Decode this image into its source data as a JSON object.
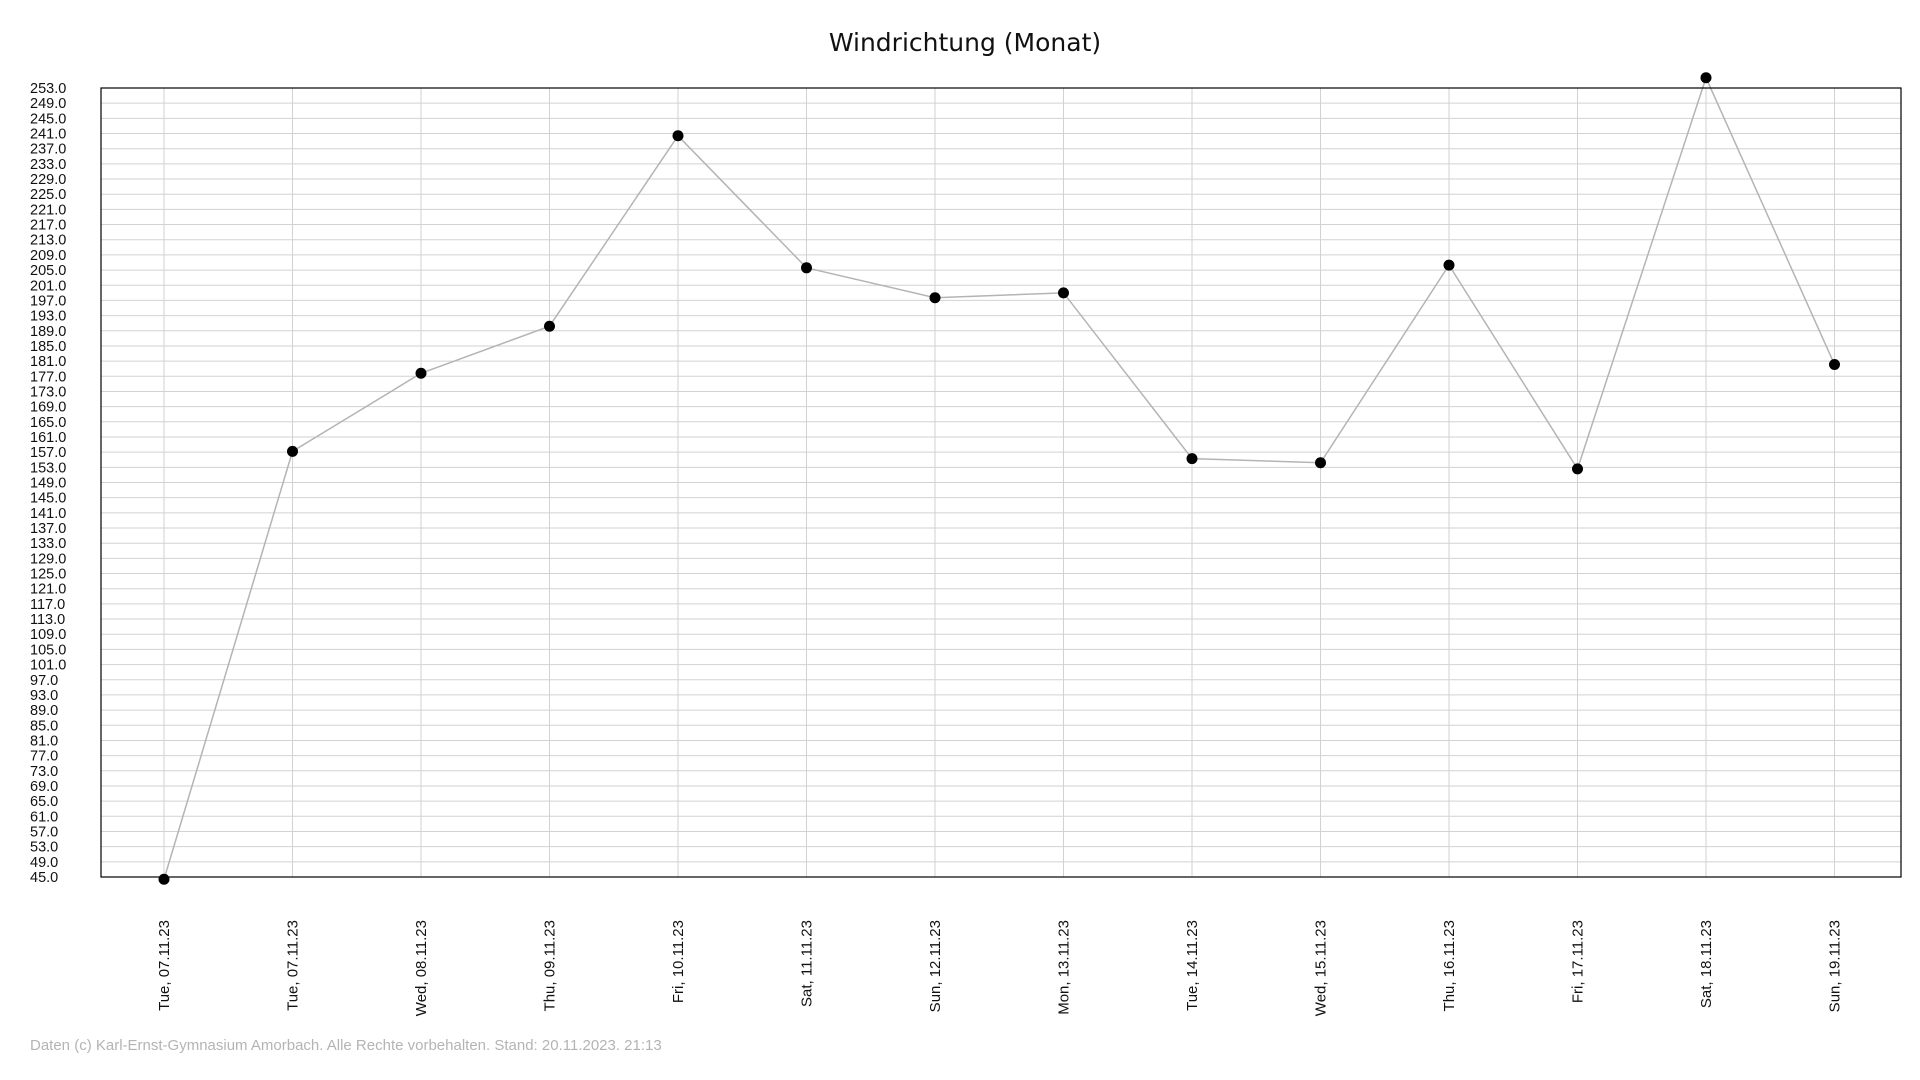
{
  "chart_data": {
    "type": "line",
    "title": "Windrichtung (Monat)",
    "xlabel": "",
    "ylabel": "",
    "categories": [
      "Tue, 07.11.23",
      "Tue, 07.11.23",
      "Wed, 08.11.23",
      "Thu, 09.11.23",
      "Fri, 10.11.23",
      "Sat, 11.11.23",
      "Sun, 12.11.23",
      "Mon, 13.11.23",
      "Tue, 14.11.23",
      "Wed, 15.11.23",
      "Thu, 16.11.23",
      "Fri, 17.11.23",
      "Sat, 18.11.23",
      "Sun, 19.11.23"
    ],
    "series": [
      {
        "values": [
          44.4,
          157.2,
          177.8,
          190.2,
          240.4,
          205.6,
          197.7,
          199.0,
          155.3,
          154.2,
          206.3,
          152.6,
          255.7,
          180.1
        ]
      }
    ],
    "ylim": [
      45,
      253
    ],
    "yticks": [
      "45.0",
      "49.0",
      "53.0",
      "57.0",
      "61.0",
      "65.0",
      "69.0",
      "73.0",
      "77.0",
      "81.0",
      "85.0",
      "89.0",
      "93.0",
      "97.0",
      "101.0",
      "105.0",
      "109.0",
      "113.0",
      "117.0",
      "121.0",
      "125.0",
      "129.0",
      "133.0",
      "137.0",
      "141.0",
      "145.0",
      "149.0",
      "153.0",
      "157.0",
      "161.0",
      "165.0",
      "169.0",
      "173.0",
      "177.0",
      "181.0",
      "185.0",
      "189.0",
      "193.0",
      "197.0",
      "201.0",
      "205.0",
      "209.0",
      "213.0",
      "217.0",
      "221.0",
      "225.0",
      "229.0",
      "233.0",
      "237.0",
      "241.0",
      "245.0",
      "249.0",
      "253.0"
    ],
    "grid": true,
    "colors": {
      "line": "#b4b4b4",
      "marker": "#000000",
      "grid": "#d2d2d2",
      "frame": "#000000"
    }
  },
  "footer": "Daten (c) Karl-Ernst-Gymnasium Amorbach. Alle Rechte vorbehalten. Stand: 20.11.2023. 21:13"
}
